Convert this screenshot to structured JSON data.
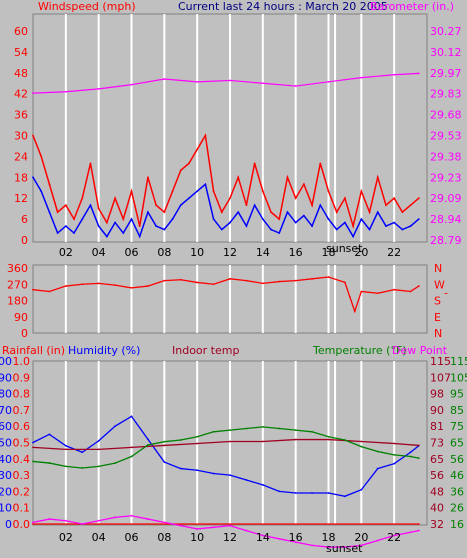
{
  "colors": {
    "background": "#c0c0c0",
    "grid": "#ffffff",
    "wind_gust": "#ff0000",
    "wind_avg": "#0000ff",
    "barometer": "#ff00ff",
    "direction": "#ff0000",
    "rainfall": "#ff0000",
    "humidity": "#0000ff",
    "indoor_temp": "#a00020",
    "temperature": "#008000",
    "dew_point": "#ff00ff",
    "title": "#000080"
  },
  "header": {
    "title": "Current last 24 hours : March 20 2005"
  },
  "chart_data": [
    {
      "id": "wind_baro",
      "type": "line",
      "left_axis_label": "Windspeed (mph)",
      "right_axis_label": "Barometer (in.)",
      "left_ticks": [
        "0",
        "6",
        "12",
        "18",
        "24",
        "30",
        "36",
        "42",
        "48",
        "54",
        "60"
      ],
      "right_ticks": [
        "28.79",
        "28.94",
        "29.09",
        "29.23",
        "29.38",
        "29.53",
        "29.68",
        "29.83",
        "29.97",
        "30.12",
        "30.27"
      ],
      "x_ticks": [
        "02",
        "04",
        "06",
        "08",
        "10",
        "12",
        "14",
        "16",
        "18",
        "20",
        "22"
      ],
      "marker_label": "sunset",
      "ylim_left": [
        0,
        60
      ],
      "ylim_right": [
        28.79,
        30.27
      ],
      "series": [
        {
          "name": "Windspeed gust",
          "color": "#ff0000",
          "x": [
            0,
            0.5,
            1,
            1.5,
            2,
            2.5,
            3,
            3.5,
            4,
            4.5,
            5,
            5.5,
            6,
            6.5,
            7,
            7.5,
            8,
            8.5,
            9,
            9.5,
            10,
            10.5,
            11,
            11.5,
            12,
            12.5,
            13,
            13.5,
            14,
            14.5,
            15,
            15.5,
            16,
            16.5,
            17,
            17.5,
            18,
            18.5,
            19,
            19.5,
            20,
            20.5,
            21,
            21.5,
            22,
            22.5,
            23,
            23.5
          ],
          "values": [
            30,
            24,
            16,
            8,
            10,
            6,
            12,
            22,
            9,
            5,
            12,
            6,
            14,
            4,
            18,
            10,
            8,
            14,
            20,
            22,
            26,
            30,
            14,
            8,
            12,
            18,
            10,
            22,
            14,
            8,
            6,
            18,
            12,
            16,
            10,
            22,
            14,
            8,
            12,
            4,
            14,
            8,
            18,
            10,
            12,
            8,
            10,
            12
          ]
        },
        {
          "name": "Windspeed avg",
          "color": "#0000ff",
          "x": [
            0,
            0.5,
            1,
            1.5,
            2,
            2.5,
            3,
            3.5,
            4,
            4.5,
            5,
            5.5,
            6,
            6.5,
            7,
            7.5,
            8,
            8.5,
            9,
            9.5,
            10,
            10.5,
            11,
            11.5,
            12,
            12.5,
            13,
            13.5,
            14,
            14.5,
            15,
            15.5,
            16,
            16.5,
            17,
            17.5,
            18,
            18.5,
            19,
            19.5,
            20,
            20.5,
            21,
            21.5,
            22,
            22.5,
            23,
            23.5
          ],
          "values": [
            18,
            14,
            8,
            2,
            4,
            2,
            6,
            10,
            4,
            1,
            5,
            2,
            6,
            1,
            8,
            4,
            3,
            6,
            10,
            12,
            14,
            16,
            6,
            3,
            5,
            8,
            4,
            10,
            6,
            3,
            2,
            8,
            5,
            7,
            4,
            10,
            6,
            3,
            5,
            1,
            6,
            3,
            8,
            4,
            5,
            3,
            4,
            6
          ]
        },
        {
          "name": "Barometer",
          "color": "#ff00ff",
          "x": [
            0,
            2,
            4,
            6,
            8,
            10,
            12,
            14,
            16,
            18,
            20,
            22,
            23.5
          ],
          "values": [
            29.83,
            29.84,
            29.86,
            29.89,
            29.93,
            29.91,
            29.92,
            29.9,
            29.88,
            29.91,
            29.94,
            29.96,
            29.97
          ]
        }
      ]
    },
    {
      "id": "direction",
      "type": "line",
      "left_ticks": [
        "0",
        "90",
        "180",
        "270",
        "360"
      ],
      "right_ticks": [
        "N",
        "W",
        "S",
        "E",
        "N"
      ],
      "right_ticks_top_down": [
        "N",
        "W",
        "S",
        "E",
        "N"
      ],
      "right_extra": "-",
      "ylim": [
        0,
        360
      ],
      "series": [
        {
          "name": "Wind direction",
          "color": "#ff0000",
          "x": [
            0,
            1,
            2,
            3,
            4,
            5,
            6,
            7,
            8,
            9,
            10,
            11,
            12,
            13,
            14,
            15,
            16,
            17,
            18,
            19,
            19.3,
            19.6,
            20,
            21,
            22,
            23,
            23.5
          ],
          "values": [
            240,
            230,
            260,
            270,
            275,
            265,
            250,
            260,
            290,
            295,
            280,
            270,
            300,
            290,
            275,
            285,
            290,
            300,
            310,
            280,
            200,
            120,
            230,
            220,
            240,
            230,
            260
          ]
        }
      ]
    },
    {
      "id": "weather",
      "type": "line",
      "labels": {
        "rainfall": "Rainfall (in)",
        "humidity": "Humidity (%)",
        "indoor": "Indoor temp",
        "temperature": "Temperature (°F)",
        "dewpoint": "Dew Point"
      },
      "humidity_ticks": [
        "0",
        "10",
        "20",
        "30",
        "40",
        "50",
        "60",
        "70",
        "80",
        "90",
        "100"
      ],
      "rainfall_ticks": [
        "0.0",
        "0.1",
        "0.2",
        "0.3",
        "0.4",
        "0.5",
        "0.6",
        "0.7",
        "0.8",
        "0.9",
        "1.0"
      ],
      "temp_ticks_red": [
        "32",
        "40",
        "48",
        "56",
        "65",
        "73",
        "81",
        "90",
        "98",
        "107",
        "115"
      ],
      "temp_ticks_green": [
        "16",
        "26",
        "36",
        "46",
        "56",
        "65",
        "75",
        "85",
        "95",
        "105",
        "115"
      ],
      "x_ticks": [
        "02",
        "04",
        "06",
        "08",
        "10",
        "12",
        "14",
        "16",
        "18",
        "20",
        "22"
      ],
      "marker_label": "sunset",
      "series": [
        {
          "name": "Rainfall",
          "color": "#ff0000",
          "x": [
            0,
            23.5
          ],
          "values": [
            0.0,
            0.0
          ]
        },
        {
          "name": "Humidity",
          "color": "#0000ff",
          "x": [
            0,
            1,
            2,
            3,
            4,
            5,
            6,
            7,
            8,
            9,
            10,
            11,
            12,
            13,
            14,
            15,
            16,
            17,
            18,
            19,
            20,
            21,
            22,
            23,
            23.5
          ],
          "values": [
            50,
            55,
            48,
            44,
            51,
            60,
            66,
            52,
            38,
            34,
            33,
            31,
            30,
            27,
            24,
            20,
            19,
            19,
            19,
            17,
            21,
            34,
            37,
            44,
            48
          ]
        },
        {
          "name": "Indoor temp",
          "color": "#a00020",
          "x": [
            0,
            2,
            4,
            6,
            8,
            10,
            12,
            14,
            16,
            18,
            20,
            22,
            23.5
          ],
          "values": [
            71,
            70,
            70,
            71,
            72,
            73,
            74,
            74,
            75,
            75,
            74,
            73,
            72
          ]
        },
        {
          "name": "Temperature",
          "color": "#008000",
          "x": [
            0,
            1,
            2,
            3,
            4,
            5,
            6,
            7,
            8,
            9,
            10,
            11,
            12,
            13,
            14,
            15,
            16,
            17,
            18,
            19,
            20,
            21,
            22,
            23,
            23.5
          ],
          "values": [
            54,
            53,
            51,
            50,
            51,
            53,
            57,
            64,
            66,
            67,
            69,
            72,
            73,
            74,
            75,
            74,
            73,
            72,
            69,
            67,
            63,
            60,
            58,
            57,
            56
          ]
        },
        {
          "name": "Dew Point",
          "color": "#ff00ff",
          "x": [
            0,
            1,
            2,
            3,
            4,
            5,
            6,
            7,
            8,
            9,
            10,
            11,
            12,
            13,
            14,
            15,
            16,
            17,
            18,
            19,
            20,
            21,
            22,
            23,
            23.5
          ],
          "values": [
            17,
            19,
            18,
            16,
            18,
            20,
            21,
            19,
            17,
            15,
            13,
            14,
            15,
            12,
            9,
            7,
            5,
            3,
            2,
            2,
            3,
            6,
            9,
            11,
            12
          ]
        }
      ]
    }
  ]
}
